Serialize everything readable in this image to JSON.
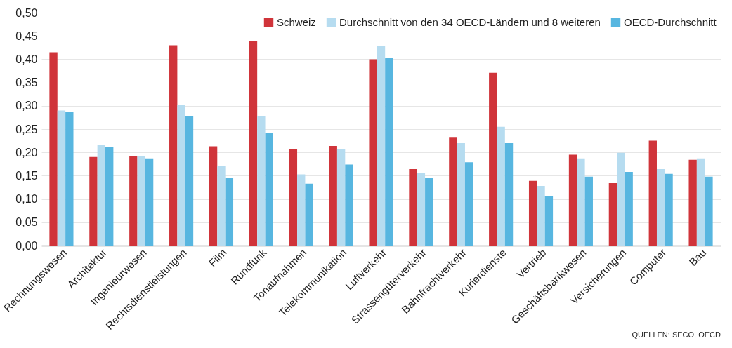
{
  "chart_data": {
    "type": "bar",
    "categories": [
      "Rechnungswesen",
      "Architektur",
      "Ingenieurwesen",
      "Rechtsdienstleistungen",
      "Film",
      "Rundfunk",
      "Tonaufnahmen",
      "Telekommunikation",
      "Luftverkehr",
      "Strassengüterverkehr",
      "Bahnfrachtverkehr",
      "Kurierdienste",
      "Vertrieb",
      "Geschäftsbankwesen",
      "Versicherungen",
      "Computer",
      "Bau"
    ],
    "series": [
      {
        "name": "Schweiz",
        "color": "#d0343a",
        "values": [
          0.415,
          0.19,
          0.192,
          0.43,
          0.213,
          0.439,
          0.207,
          0.214,
          0.4,
          0.164,
          0.233,
          0.371,
          0.139,
          0.195,
          0.134,
          0.225,
          0.184
        ]
      },
      {
        "name": "Durchschnitt von den 34 OECD-Ländern und 8 weiteren",
        "color": "#b6dcf0",
        "values": [
          0.29,
          0.216,
          0.192,
          0.302,
          0.171,
          0.278,
          0.153,
          0.207,
          0.428,
          0.156,
          0.22,
          0.255,
          0.128,
          0.187,
          0.199,
          0.164,
          0.187
        ]
      },
      {
        "name": "OECD-Durchschnitt",
        "color": "#57b6e0",
        "values": [
          0.287,
          0.211,
          0.187,
          0.277,
          0.145,
          0.241,
          0.133,
          0.174,
          0.403,
          0.145,
          0.179,
          0.22,
          0.107,
          0.148,
          0.158,
          0.154,
          0.148
        ]
      }
    ],
    "ylim": [
      0,
      0.5
    ],
    "yticks": [
      {
        "value": 0,
        "label": "0,00"
      },
      {
        "value": 0.05,
        "label": "0,05"
      },
      {
        "value": 0.1,
        "label": "0,10"
      },
      {
        "value": 0.15,
        "label": "0,15"
      },
      {
        "value": 0.2,
        "label": "0,20"
      },
      {
        "value": 0.25,
        "label": "0,25"
      },
      {
        "value": 0.3,
        "label": "0,30"
      },
      {
        "value": 0.35,
        "label": "0,35"
      },
      {
        "value": 0.4,
        "label": "0,40"
      },
      {
        "value": 0.45,
        "label": "0,45"
      },
      {
        "value": 0.5,
        "label": "0,50"
      }
    ],
    "grid": "y",
    "legend": "top right",
    "annotations": [
      "QUELLEN: SECO, OECD"
    ]
  }
}
